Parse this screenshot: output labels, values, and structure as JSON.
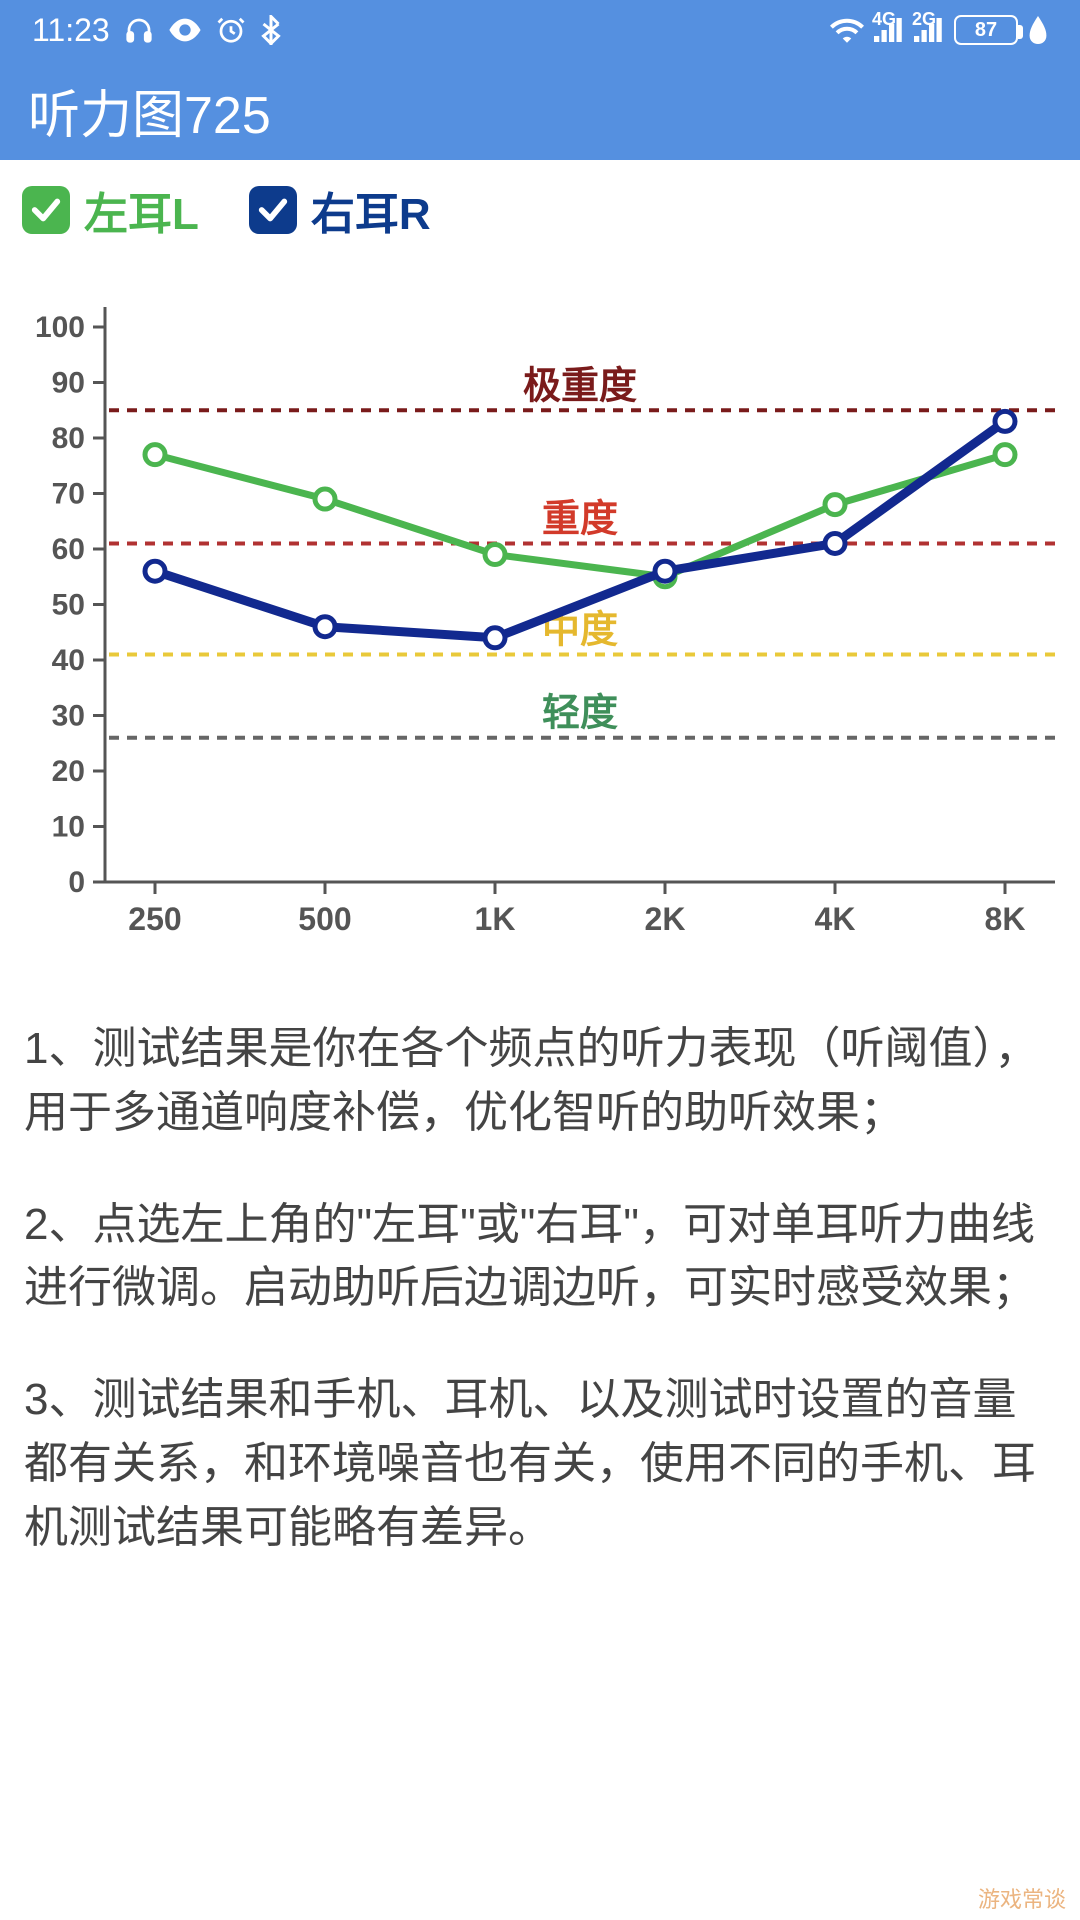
{
  "status_bar": {
    "time": "11:23",
    "icons_left": [
      "headphones",
      "eye",
      "alarm",
      "bluetooth"
    ],
    "icons_right": [
      "wifi",
      "4g-signal",
      "2g-signal"
    ],
    "battery_pct": "87"
  },
  "app_bar": {
    "title": "听力图725"
  },
  "legend": {
    "left": {
      "label": "左耳L",
      "checked": true,
      "color": "#4bb54f",
      "text_color": "#4bb54f"
    },
    "right": {
      "label": "右耳R",
      "checked": true,
      "color": "#0d3b8c",
      "text_color": "#0d3b8c"
    }
  },
  "chart": {
    "type": "line",
    "background_color": "#ffffff",
    "y_axis": {
      "min": 0,
      "max": 100,
      "step": 10,
      "label_fontsize": 30,
      "label_color": "#555"
    },
    "x_axis": {
      "categories": [
        "250",
        "500",
        "1K",
        "2K",
        "4K",
        "8K"
      ],
      "label_fontsize": 32,
      "label_color": "#555"
    },
    "axis_color": "#555",
    "series": {
      "left": {
        "color": "#4bb54f",
        "marker_fill": "#ffffff",
        "line_width": 7,
        "values": [
          77,
          69,
          59,
          55,
          68,
          77
        ]
      },
      "right": {
        "color": "#12298f",
        "marker_fill": "#ffffff",
        "line_width": 9,
        "values": [
          56,
          46,
          44,
          56,
          61,
          83
        ]
      }
    },
    "thresholds": [
      {
        "label": "极重度",
        "y": 85,
        "line_color": "#7a1b1b",
        "text_color": "#7a1b1b"
      },
      {
        "label": "重度",
        "y": 61,
        "line_color": "#b13232",
        "text_color": "#d23a2a"
      },
      {
        "label": "中度",
        "y": 41,
        "line_color": "#e9c93a",
        "text_color": "#e5b82e"
      },
      {
        "label": "轻度",
        "y": 26,
        "line_color": "#666666",
        "text_color": "#3f8f5a"
      }
    ],
    "threshold_label_fontsize": 38,
    "dash": "10,8"
  },
  "description": {
    "p1": "1、测试结果是你在各个频点的听力表现（听阈值），用于多通道响度补偿，优化智听的助听效果；",
    "p2": "2、点选左上角的\"左耳\"或\"右耳\"，可对单耳听力曲线进行微调。启动助听后边调边听，可实时感受效果；",
    "p3": "3、测试结果和手机、耳机、以及测试时设置的音量都有关系，和环境噪音也有关，使用不同的手机、耳机测试结果可能略有差异。"
  },
  "watermark": "游戏常谈"
}
